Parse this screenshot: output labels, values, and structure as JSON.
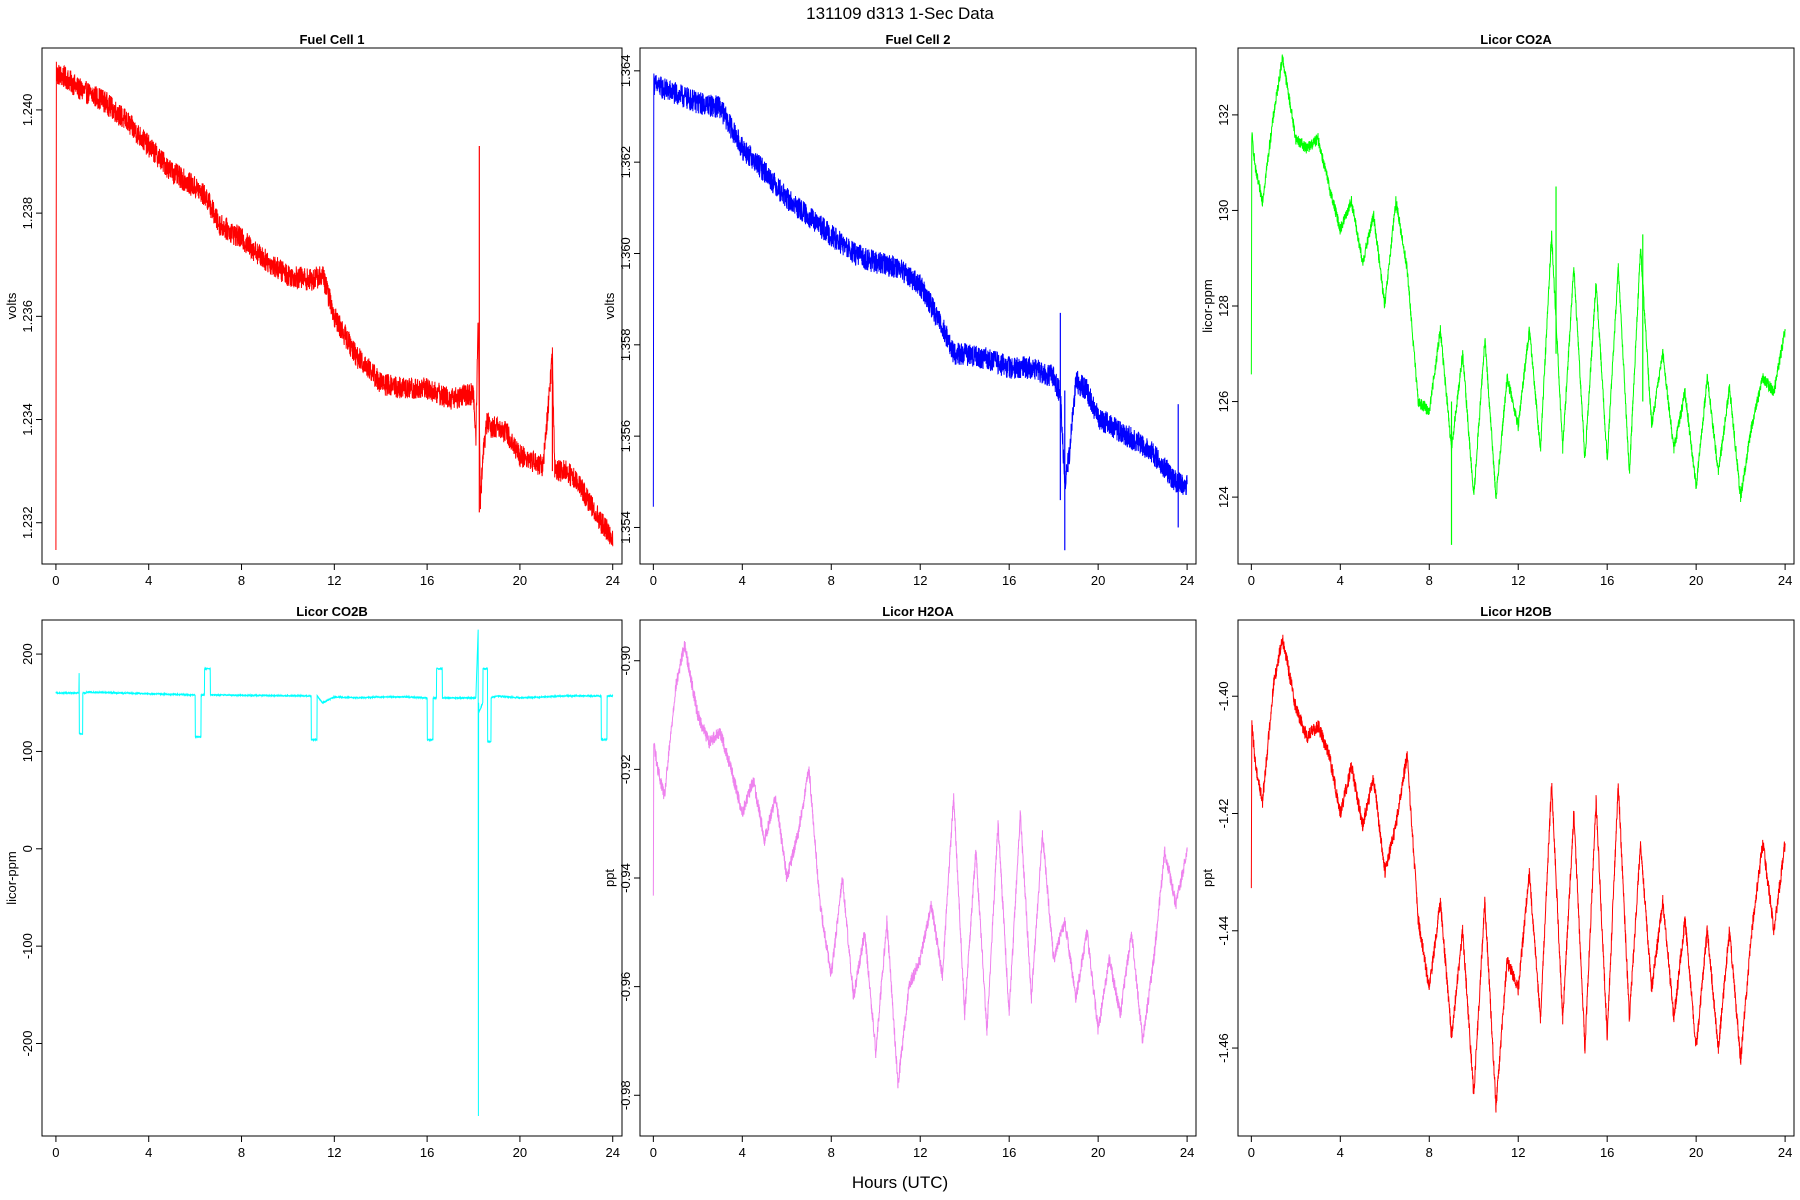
{
  "figure": {
    "title": "131109   d313   1-Sec Data",
    "xlabel": "Hours (UTC)"
  },
  "chart_data": [
    {
      "type": "line",
      "title": "Fuel Cell 1",
      "ylabel": "volts",
      "color": "#ff0000",
      "xlim": [
        -0.6,
        24.4
      ],
      "ylim": [
        1.2312,
        1.2412
      ],
      "xticks": [
        0,
        4,
        8,
        12,
        16,
        20,
        24
      ],
      "yticks": [
        1.232,
        1.234,
        1.236,
        1.238,
        1.24
      ],
      "ytick_labels": [
        "1.232",
        "1.234",
        "1.236",
        "1.238",
        "1.240"
      ],
      "noise": 0.00022,
      "x": [
        0,
        0.02,
        0.04,
        0.5,
        1,
        2,
        3,
        4,
        5,
        6,
        6.5,
        7,
        8,
        9,
        10,
        11,
        11.5,
        12,
        13,
        13.5,
        14,
        15,
        16,
        17,
        18,
        18.1,
        18.2,
        18.3,
        18.4,
        18.6,
        18.8,
        19,
        19.5,
        20,
        21,
        21.4,
        21.5,
        22,
        22.5,
        23,
        23.5,
        24
      ],
      "y": [
        1.2316,
        1.2408,
        1.2407,
        1.2406,
        1.2404,
        1.2402,
        1.2398,
        1.2393,
        1.2388,
        1.2385,
        1.2383,
        1.2378,
        1.2375,
        1.2371,
        1.2368,
        1.2367,
        1.2368,
        1.236,
        1.2352,
        1.235,
        1.2347,
        1.2346,
        1.2346,
        1.2344,
        1.2345,
        1.2336,
        1.236,
        1.2324,
        1.2333,
        1.234,
        1.2338,
        1.2339,
        1.2337,
        1.2333,
        1.2331,
        1.2352,
        1.233,
        1.233,
        1.2328,
        1.2324,
        1.232,
        1.2317
      ],
      "spikes": [
        {
          "x": 18.25,
          "y0": 1.2322,
          "y1": 1.2393
        },
        {
          "x": 21.4,
          "y0": 1.233,
          "y1": 1.2352
        }
      ]
    },
    {
      "type": "line",
      "title": "Fuel Cell 2",
      "ylabel": "volts",
      "color": "#0000ff",
      "xlim": [
        -0.6,
        24.4
      ],
      "ylim": [
        1.3532,
        1.3645
      ],
      "xticks": [
        0,
        4,
        8,
        12,
        16,
        20,
        24
      ],
      "yticks": [
        1.354,
        1.356,
        1.358,
        1.36,
        1.362,
        1.364
      ],
      "ytick_labels": [
        "1.354",
        "1.356",
        "1.358",
        "1.360",
        "1.362",
        "1.364"
      ],
      "noise": 0.00025,
      "x": [
        0,
        0.02,
        0.04,
        0.5,
        1,
        2,
        3,
        4,
        5,
        6,
        7,
        8,
        9,
        10,
        11,
        12,
        13,
        13.5,
        14,
        15,
        16,
        17,
        18,
        18.3,
        18.5,
        18.7,
        19,
        19.5,
        20,
        21,
        22,
        22.5,
        23,
        23.5,
        24
      ],
      "y": [
        1.3547,
        1.3638,
        1.3637,
        1.3636,
        1.3635,
        1.3633,
        1.3632,
        1.3623,
        1.3618,
        1.3612,
        1.3608,
        1.3604,
        1.36,
        1.3598,
        1.3597,
        1.3593,
        1.3584,
        1.3578,
        1.3578,
        1.3577,
        1.3575,
        1.3575,
        1.3573,
        1.3569,
        1.355,
        1.3556,
        1.3572,
        1.357,
        1.3564,
        1.3561,
        1.3558,
        1.3556,
        1.3553,
        1.355,
        1.3549
      ],
      "spikes": [
        {
          "x": 18.3,
          "y0": 1.3546,
          "y1": 1.3587
        },
        {
          "x": 18.5,
          "y0": 1.3535,
          "y1": 1.357
        },
        {
          "x": 23.6,
          "y0": 1.354,
          "y1": 1.3567
        }
      ]
    },
    {
      "type": "line",
      "title": "Licor CO2A",
      "ylabel": "licor-ppm",
      "color": "#00ff00",
      "xlim": [
        -0.6,
        24.4
      ],
      "ylim": [
        122.6,
        133.4
      ],
      "xticks": [
        0,
        4,
        8,
        12,
        16,
        20,
        24
      ],
      "yticks": [
        124,
        126,
        128,
        130,
        132
      ],
      "ytick_labels": [
        "124",
        "126",
        "128",
        "130",
        "132"
      ],
      "noise": 0.12,
      "x": [
        0,
        0.02,
        0.2,
        0.5,
        1,
        1.4,
        2,
        2.5,
        3,
        3.5,
        4,
        4.5,
        5,
        5.5,
        6,
        6.5,
        7,
        7.5,
        8,
        8.5,
        9,
        9.5,
        10,
        10.5,
        11,
        11.5,
        12,
        12.5,
        13,
        13.5,
        14,
        14.5,
        15,
        15.5,
        16,
        16.5,
        17,
        17.5,
        18,
        18.5,
        19,
        19.5,
        20,
        20.5,
        21,
        21.5,
        22,
        22.5,
        23,
        23.5,
        24
      ],
      "y": [
        126.5,
        131.6,
        130.8,
        130.2,
        132.0,
        133.2,
        131.5,
        131.3,
        131.5,
        130.5,
        129.6,
        130.2,
        128.9,
        129.9,
        128.0,
        130.2,
        128.8,
        126.0,
        125.8,
        127.5,
        125.0,
        127.0,
        124.0,
        127.3,
        124.0,
        126.5,
        125.5,
        127.5,
        125.0,
        129.5,
        125.0,
        128.8,
        124.8,
        128.5,
        124.8,
        128.8,
        124.5,
        129.2,
        125.5,
        127.0,
        125.0,
        126.2,
        124.2,
        126.5,
        124.5,
        126.3,
        124.0,
        125.5,
        126.5,
        126.2,
        127.5
      ],
      "spikes": [
        {
          "x": 13.7,
          "y0": 127.0,
          "y1": 130.5
        },
        {
          "x": 17.6,
          "y0": 126.0,
          "y1": 129.5
        },
        {
          "x": 9.0,
          "y0": 123.0,
          "y1": 126.0
        }
      ]
    },
    {
      "type": "line",
      "title": "Licor CO2B",
      "ylabel": "licor-ppm",
      "color": "#00ffff",
      "xlim": [
        -0.6,
        24.4
      ],
      "ylim": [
        -295,
        235
      ],
      "xticks": [
        0,
        4,
        8,
        12,
        16,
        20,
        24
      ],
      "yticks": [
        -200,
        -100,
        0,
        100,
        200
      ],
      "ytick_labels": [
        "-200",
        "-100",
        "0",
        "100",
        "200"
      ],
      "noise": 0.6,
      "x": [
        0,
        0.99,
        1.0,
        1.01,
        1.15,
        1.16,
        1.3,
        1.31,
        6.0,
        6.01,
        6.25,
        6.26,
        6.4,
        6.41,
        6.65,
        6.66,
        11.0,
        11.01,
        11.25,
        11.26,
        11.5,
        12,
        13,
        14,
        15,
        16.0,
        16.01,
        16.25,
        16.26,
        16.4,
        16.41,
        16.65,
        16.66,
        18.1,
        18.2,
        18.21,
        18.22,
        18.23,
        18.4,
        18.41,
        18.6,
        18.61,
        18.75,
        18.76,
        19,
        20,
        21,
        22,
        23,
        23.5,
        23.51,
        23.75,
        23.76,
        24
      ],
      "y": [
        160,
        160,
        180,
        118,
        118,
        160,
        160,
        161,
        158,
        115,
        115,
        158,
        158,
        185,
        185,
        158,
        157,
        112,
        112,
        157,
        150,
        156,
        155,
        156,
        156,
        155,
        112,
        112,
        155,
        155,
        185,
        185,
        155,
        155,
        225,
        -275,
        150,
        140,
        150,
        185,
        185,
        110,
        110,
        155,
        157,
        155,
        156,
        157,
        157,
        157,
        112,
        112,
        157,
        157
      ]
    },
    {
      "type": "line",
      "title": "Licor H2OA",
      "ylabel": "ppt",
      "color": "#ee82ee",
      "xlim": [
        -0.6,
        24.4
      ],
      "ylim": [
        -0.9875,
        -0.8925
      ],
      "xticks": [
        0,
        4,
        8,
        12,
        16,
        20,
        24
      ],
      "yticks": [
        -0.98,
        -0.96,
        -0.94,
        -0.92,
        -0.9
      ],
      "ytick_labels": [
        "-0.98",
        "-0.96",
        "-0.94",
        "-0.92",
        "-0.90"
      ],
      "noise": 0.0012,
      "x": [
        0,
        0.02,
        0.2,
        0.5,
        1,
        1.4,
        2,
        2.5,
        3,
        3.5,
        4,
        4.5,
        5,
        5.5,
        6,
        6.5,
        7,
        7.5,
        8,
        8.5,
        9,
        9.5,
        10,
        10.5,
        11,
        11.5,
        12,
        12.5,
        13,
        13.5,
        14,
        14.5,
        15,
        15.5,
        16,
        16.5,
        17,
        17.5,
        18,
        18.5,
        19,
        19.5,
        20,
        20.5,
        21,
        21.5,
        22,
        22.5,
        23,
        23.5,
        24
      ],
      "y": [
        -0.943,
        -0.915,
        -0.92,
        -0.925,
        -0.905,
        -0.897,
        -0.91,
        -0.915,
        -0.913,
        -0.92,
        -0.928,
        -0.922,
        -0.933,
        -0.925,
        -0.94,
        -0.932,
        -0.92,
        -0.945,
        -0.958,
        -0.94,
        -0.962,
        -0.95,
        -0.972,
        -0.948,
        -0.978,
        -0.96,
        -0.955,
        -0.945,
        -0.958,
        -0.925,
        -0.965,
        -0.935,
        -0.968,
        -0.93,
        -0.965,
        -0.928,
        -0.962,
        -0.932,
        -0.955,
        -0.948,
        -0.962,
        -0.95,
        -0.968,
        -0.955,
        -0.965,
        -0.95,
        -0.97,
        -0.955,
        -0.935,
        -0.945,
        -0.935
      ]
    },
    {
      "type": "line",
      "title": "Licor H2OB",
      "ylabel": "ppt",
      "color": "#ff0000",
      "xlim": [
        -0.6,
        24.4
      ],
      "ylim": [
        -1.475,
        -1.387
      ],
      "xticks": [
        0,
        4,
        8,
        12,
        16,
        20,
        24
      ],
      "yticks": [
        -1.46,
        -1.44,
        -1.42,
        -1.4
      ],
      "ytick_labels": [
        "-1.46",
        "-1.44",
        "-1.42",
        "-1.40"
      ],
      "noise": 0.0012,
      "x": [
        0,
        0.02,
        0.2,
        0.5,
        1,
        1.4,
        2,
        2.5,
        3,
        3.5,
        4,
        4.5,
        5,
        5.5,
        6,
        6.5,
        7,
        7.5,
        8,
        8.5,
        9,
        9.5,
        10,
        10.5,
        11,
        11.5,
        12,
        12.5,
        13,
        13.5,
        14,
        14.5,
        15,
        15.5,
        16,
        16.5,
        17,
        17.5,
        18,
        18.5,
        19,
        19.5,
        20,
        20.5,
        21,
        21.5,
        22,
        22.5,
        23,
        23.5,
        24
      ],
      "y": [
        -1.432,
        -1.405,
        -1.412,
        -1.418,
        -1.398,
        -1.39,
        -1.402,
        -1.407,
        -1.405,
        -1.41,
        -1.42,
        -1.412,
        -1.422,
        -1.414,
        -1.43,
        -1.422,
        -1.41,
        -1.438,
        -1.45,
        -1.435,
        -1.458,
        -1.44,
        -1.468,
        -1.435,
        -1.47,
        -1.445,
        -1.45,
        -1.43,
        -1.455,
        -1.415,
        -1.455,
        -1.42,
        -1.46,
        -1.418,
        -1.458,
        -1.415,
        -1.455,
        -1.425,
        -1.45,
        -1.435,
        -1.455,
        -1.438,
        -1.46,
        -1.44,
        -1.46,
        -1.44,
        -1.462,
        -1.44,
        -1.425,
        -1.44,
        -1.425
      ]
    }
  ]
}
